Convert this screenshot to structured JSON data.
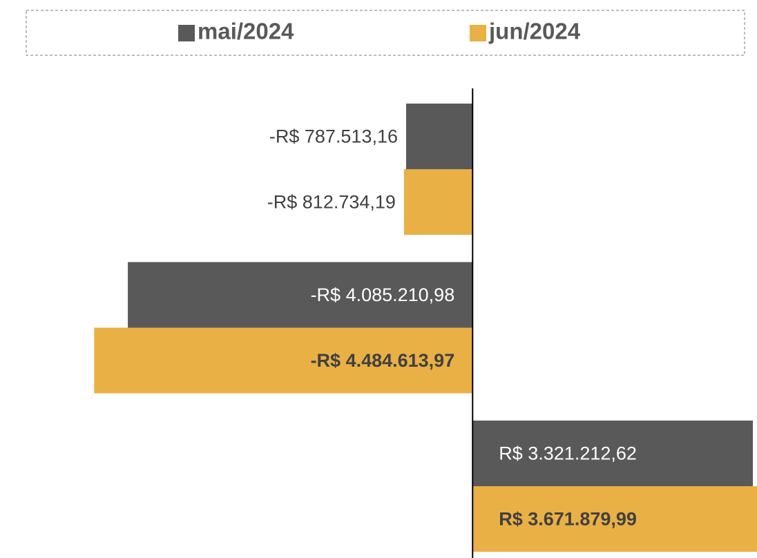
{
  "chart_data": {
    "type": "barh",
    "categories": [
      null,
      null,
      null
    ],
    "series": [
      {
        "name": "mai/2024",
        "color": "#595959",
        "values": [
          -787513.16,
          -4085210.98,
          3321212.62
        ],
        "value_labels": [
          "-R$ 787.513,16",
          "-R$ 4.085.210,98",
          "R$ 3.321.212,62"
        ]
      },
      {
        "name": "jun/2024",
        "color": "#e9b045",
        "values": [
          -812734.19,
          -4484613.97,
          3671879.99
        ],
        "value_labels": [
          "-R$ 812.734,19",
          "-R$ 4.484.613,97",
          "R$ 3.671.879,99"
        ]
      }
    ],
    "xlim": [
      -5600000,
      3370000
    ],
    "legend": "top"
  }
}
